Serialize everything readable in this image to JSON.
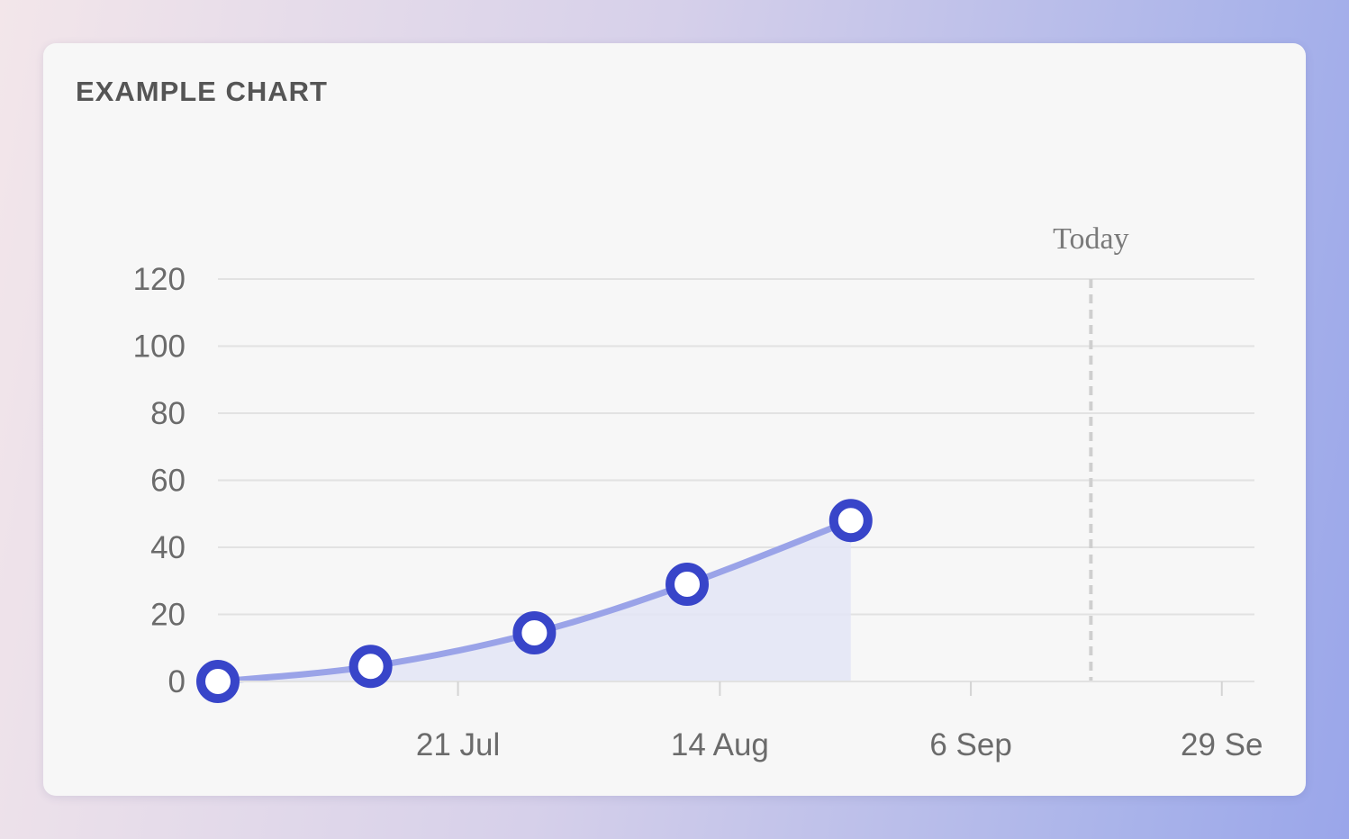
{
  "card": {
    "title": "EXAMPLE CHART"
  },
  "chart_data": {
    "type": "area",
    "title": "EXAMPLE CHART",
    "xlabel": "",
    "ylabel": "",
    "x_axis_type": "date",
    "xlim": [
      "2023-06-29",
      "2023-10-01"
    ],
    "ylim": [
      0,
      120
    ],
    "y_ticks": [
      0,
      20,
      40,
      60,
      80,
      100,
      120
    ],
    "x_ticks": [
      {
        "date": "2023-07-21",
        "label": "21 Jul"
      },
      {
        "date": "2023-08-14",
        "label": "14 Aug"
      },
      {
        "date": "2023-09-06",
        "label": "6 Sep"
      },
      {
        "date": "2023-09-29",
        "label": "29 Se"
      }
    ],
    "series": [
      {
        "points": [
          {
            "x": "2023-06-29",
            "y": 0
          },
          {
            "x": "2023-07-13",
            "y": 4.5
          },
          {
            "x": "2023-07-28",
            "y": 14.5
          },
          {
            "x": "2023-08-11",
            "y": 29
          },
          {
            "x": "2023-08-26",
            "y": 48
          }
        ]
      }
    ],
    "today_marker": {
      "x": "2023-09-17",
      "label": "Today"
    },
    "grid": true,
    "legend": "none",
    "colors": {
      "line": "#9aa3e8",
      "area": "#e3e5f5",
      "marker_stroke": "#3845c9",
      "marker_fill": "#ffffff",
      "grid": "#e2e2e2",
      "today_line": "#cfcfcf"
    }
  }
}
